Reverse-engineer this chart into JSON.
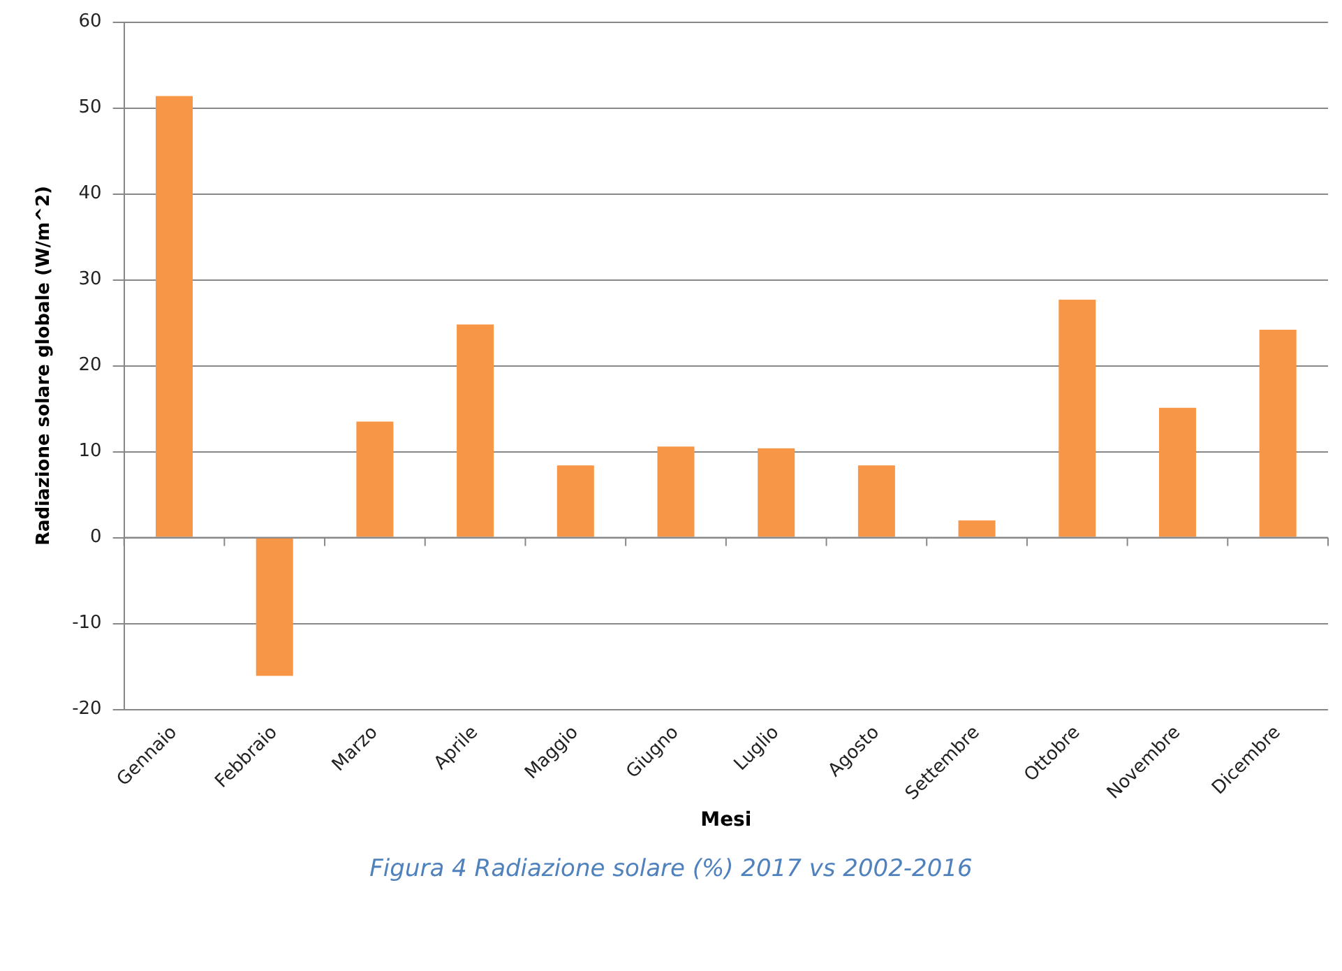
{
  "chart_data": {
    "type": "bar",
    "xlabel": "Mesi",
    "ylabel": "Radiazione solare globale (W/m^2)",
    "categories": [
      "Gennaio",
      "Febbraio",
      "Marzo",
      "Aprile",
      "Maggio",
      "Giugno",
      "Luglio",
      "Agosto",
      "Settembre",
      "Ottobre",
      "Novembre",
      "Dicembre"
    ],
    "values": [
      51.4,
      -16.1,
      13.5,
      24.8,
      8.4,
      10.6,
      10.4,
      8.4,
      2.0,
      27.7,
      15.1,
      24.2
    ],
    "color": "#f79646",
    "ylim": [
      -20,
      60
    ],
    "yticks": [
      -20,
      -10,
      0,
      10,
      20,
      30,
      40,
      50,
      60
    ],
    "grid": "y",
    "legend": false,
    "annotations": [
      "Figura 4 Radiazione solare (%) 2017 vs 2002-2016"
    ]
  }
}
